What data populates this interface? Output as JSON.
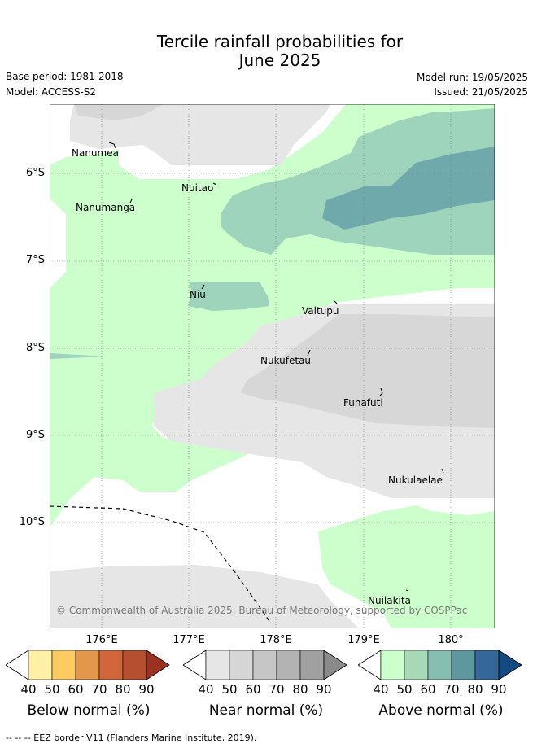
{
  "title": {
    "line1": "Tercile rainfall probabilities for",
    "line2": "June 2025"
  },
  "meta": {
    "base_period": "Base period: 1981-2018",
    "model": "Model: ACCESS-S2",
    "model_run": "Model run: 19/05/2025",
    "issued": "Issued: 21/05/2025"
  },
  "map": {
    "latitude_labels": [
      "6°S",
      "7°S",
      "8°S",
      "9°S",
      "10°S"
    ],
    "longitude_labels": [
      "176°E",
      "177°E",
      "178°E",
      "179°E",
      "180°"
    ],
    "islands": [
      "Nanumea",
      "Nuitao",
      "Nanumanga",
      "Niu",
      "Vaitupu",
      "Nukufetau",
      "Funafuti",
      "Nukulaelae",
      "Nuilakita"
    ],
    "copyright": "© Commonwealth of Australia 2025, Bureau of Meteorology, supported by COSPPac",
    "eez_legend": "-- -- -- EEZ border V11 (Flanders Marine Institute, 2019)."
  },
  "colorbars": [
    {
      "title": "Below normal (%)",
      "ticks": [
        "40",
        "50",
        "60",
        "70",
        "80",
        "90"
      ],
      "colors": [
        "#fff0a8",
        "#fecb62",
        "#e2974a",
        "#d2663a",
        "#b44f30",
        "#9c3122"
      ]
    },
    {
      "title": "Near normal (%)",
      "ticks": [
        "40",
        "50",
        "60",
        "70",
        "80",
        "90"
      ],
      "colors": [
        "#e6e6e6",
        "#d6d6d6",
        "#c6c6c6",
        "#b3b3b3",
        "#a0a0a0",
        "#8a8a8a"
      ]
    },
    {
      "title": "Above normal (%)",
      "ticks": [
        "40",
        "50",
        "60",
        "70",
        "80",
        "90"
      ],
      "colors": [
        "#ccffcc",
        "#a7d9b6",
        "#86bfb1",
        "#5f979f",
        "#35679a",
        "#134b80"
      ]
    }
  ]
}
